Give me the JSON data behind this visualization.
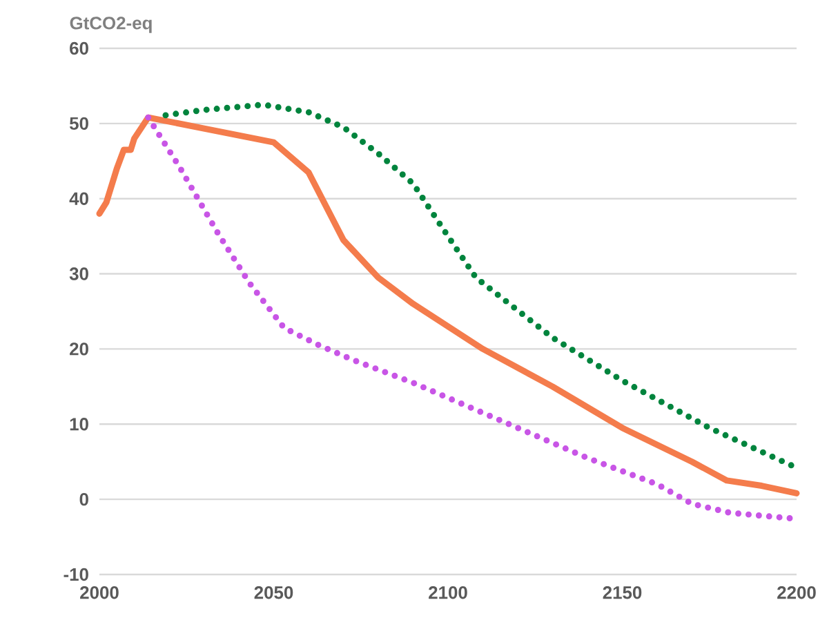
{
  "chart_data": {
    "type": "line",
    "ylabel": "GtCO2-eq",
    "xlim": [
      2000,
      2200
    ],
    "xticks": [
      2000,
      2050,
      2100,
      2150,
      2200
    ],
    "ylim": [
      -10,
      60
    ],
    "yticks": [
      -10,
      0,
      10,
      20,
      30,
      40,
      50,
      60
    ],
    "grid": "y",
    "series": [
      {
        "color": "#f47c4c",
        "line_style": "solid",
        "x": [
          2000,
          2002,
          2005,
          2007,
          2009,
          2010,
          2014,
          2050,
          2060,
          2070,
          2080,
          2090,
          2100,
          2110,
          2130,
          2150,
          2170,
          2180,
          2190,
          2200
        ],
        "values": [
          38,
          39.5,
          44,
          46.5,
          46.5,
          48,
          50.8,
          47.5,
          43.5,
          34.5,
          29.5,
          26,
          23,
          20,
          15,
          9.5,
          5,
          2.5,
          1.8,
          0.8
        ]
      },
      {
        "color": "#00843d",
        "line_style": "dotted",
        "x": [
          2019,
          2030,
          2047,
          2060,
          2070,
          2080,
          2090,
          2100,
          2108,
          2130,
          2150,
          2175,
          2200
        ],
        "values": [
          51.1,
          51.8,
          52.5,
          51.5,
          49.5,
          46,
          42,
          35,
          29.5,
          21.5,
          15.8,
          9.5,
          4.2
        ]
      },
      {
        "color": "#c855e6",
        "line_style": "dotted",
        "x": [
          2014,
          2023,
          2034,
          2043,
          2053,
          2063,
          2073,
          2090,
          2104,
          2120,
          2140,
          2160,
          2170,
          2181,
          2200
        ],
        "values": [
          50.8,
          44.2,
          35.4,
          28.8,
          22.8,
          20.5,
          18.5,
          15.5,
          12.7,
          9.5,
          5.5,
          2,
          -0.6,
          -1.8,
          -2.6
        ]
      }
    ]
  }
}
